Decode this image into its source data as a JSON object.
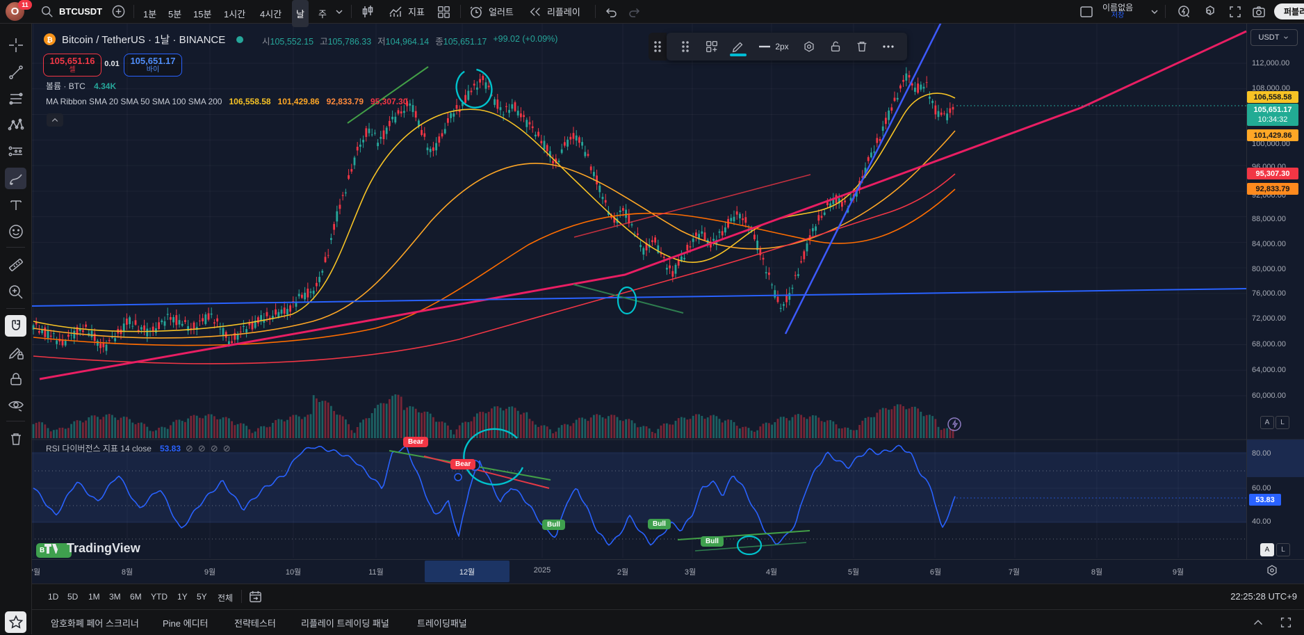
{
  "topbar": {
    "avatar_letter": "O",
    "notification_count": "11",
    "symbol": "BTCUSDT",
    "intervals": [
      "1분",
      "5분",
      "15분",
      "1시간",
      "4시간",
      "날",
      "주"
    ],
    "selected_interval": "날",
    "indicators_label": "지표",
    "alert_label": "얼러트",
    "replay_label": "리플레이",
    "layout_name": "이름없음",
    "save_label": "저장",
    "publish_label": "퍼블리시"
  },
  "legend": {
    "title": "Bitcoin / TetherUS · 1날 · BINANCE",
    "open_label": "시",
    "open": "105,552.15",
    "high_label": "고",
    "high": "105,786.33",
    "low_label": "저",
    "low": "104,964.14",
    "close_label": "종",
    "close": "105,651.17",
    "change": "+99.02 (+0.09%)",
    "sell_price": "105,651.16",
    "sell_label": "셀",
    "spread": "0.01",
    "buy_price": "105,651.17",
    "buy_label": "바이",
    "volume_label": "볼륨 · BTC",
    "volume_value": "4.34K",
    "ma_title": "MA Ribbon SMA 20 SMA 50 SMA 100 SMA 200",
    "ma_values": [
      "106,558.58",
      "101,429.86",
      "92,833.79",
      "95,307.30"
    ]
  },
  "rsi": {
    "title": "RSI 다이버전스 지표 14 close",
    "value": "53.83",
    "ticks": [
      "80.00",
      "60.00",
      "40.00"
    ]
  },
  "price_axis": {
    "currency": "USDT",
    "ticks": [
      "112,000.00",
      "108,000.00",
      "100,000.00",
      "96,000.00",
      "92,000.00",
      "88,000.00",
      "84,000.00",
      "80,000.00",
      "76,000.00",
      "72,000.00",
      "68,000.00",
      "64,000.00",
      "60,000.00"
    ],
    "sma20_label": "106,558.58",
    "last_price": "105,651.17",
    "countdown": "10:34:32",
    "sma50_label": "101,429.86",
    "sma200_label": "95,307.30",
    "sma100_label": "92,833.79",
    "auto_label": "A",
    "log_label": "L"
  },
  "time_axis": {
    "labels": [
      "7월",
      "8월",
      "9월",
      "10월",
      "11월",
      "12월",
      "2025",
      "2월",
      "3월",
      "4월",
      "5월",
      "6월",
      "7월",
      "8월",
      "9월"
    ],
    "highlighted": "12월"
  },
  "markers": {
    "bear": "Bear",
    "bull": "Bull",
    "hidden_bull": "B"
  },
  "toolbar_float": {
    "thickness": "2px"
  },
  "bottom": {
    "ranges": [
      "1D",
      "5D",
      "1M",
      "3M",
      "6M",
      "YTD",
      "1Y",
      "5Y",
      "전체"
    ],
    "clock": "22:25:28 UTC+9"
  },
  "tabs": [
    "암호화폐 페어 스크리너",
    "Pine 에디터",
    "전략테스터",
    "리플레이 트레이딩 패널",
    "트레이딩패널"
  ],
  "watermark": "TradingView",
  "colors": {
    "up": "#26a69a",
    "down": "#f23645",
    "sma20": "#f7c325",
    "sma50": "#ffa726",
    "sma100": "#ff6d00",
    "sma200": "#f23645",
    "rsi_line": "#2962ff",
    "pink_trend": "#e91e63",
    "blue_level": "#2962ff",
    "teal_drawing": "#00c2cc"
  }
}
